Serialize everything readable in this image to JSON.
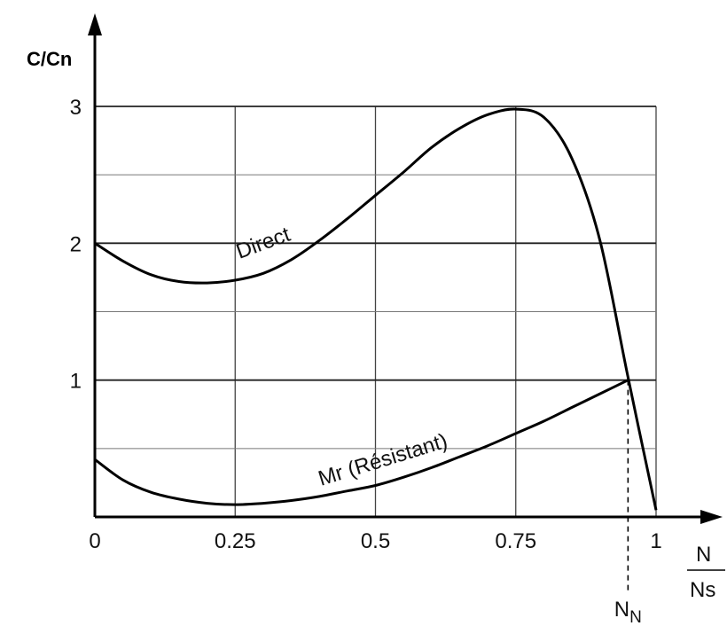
{
  "chart_data": {
    "type": "line",
    "ylabel": "C/Cn",
    "xlabel_numerator": "N",
    "xlabel_denominator": "Ns",
    "x_ticks": [
      "0",
      "0.25",
      "0.5",
      "0.75",
      "1"
    ],
    "y_ticks": [
      "1",
      "2",
      "3"
    ],
    "xlim": [
      0,
      1
    ],
    "ylim": [
      0,
      3
    ],
    "grid": true,
    "marker": {
      "label": "NN",
      "x": 0.95,
      "y": 1.0
    },
    "series": [
      {
        "name": "Direct",
        "x": [
          0,
          0.05,
          0.1,
          0.15,
          0.2,
          0.25,
          0.3,
          0.35,
          0.4,
          0.45,
          0.5,
          0.55,
          0.6,
          0.65,
          0.7,
          0.75,
          0.8,
          0.85,
          0.9,
          0.95,
          1.0
        ],
        "y": [
          2.0,
          1.87,
          1.77,
          1.72,
          1.71,
          1.73,
          1.78,
          1.88,
          2.02,
          2.18,
          2.35,
          2.52,
          2.7,
          2.84,
          2.94,
          2.98,
          2.92,
          2.62,
          2.02,
          1.02,
          0.05
        ]
      },
      {
        "name": "Mr (Résistant)",
        "x": [
          0,
          0.05,
          0.1,
          0.15,
          0.2,
          0.25,
          0.3,
          0.35,
          0.4,
          0.45,
          0.5,
          0.55,
          0.6,
          0.65,
          0.7,
          0.75,
          0.8,
          0.85,
          0.9,
          0.95
        ],
        "y": [
          0.42,
          0.27,
          0.18,
          0.13,
          0.1,
          0.09,
          0.1,
          0.12,
          0.15,
          0.19,
          0.23,
          0.29,
          0.36,
          0.44,
          0.52,
          0.61,
          0.7,
          0.8,
          0.9,
          1.0
        ]
      }
    ]
  }
}
